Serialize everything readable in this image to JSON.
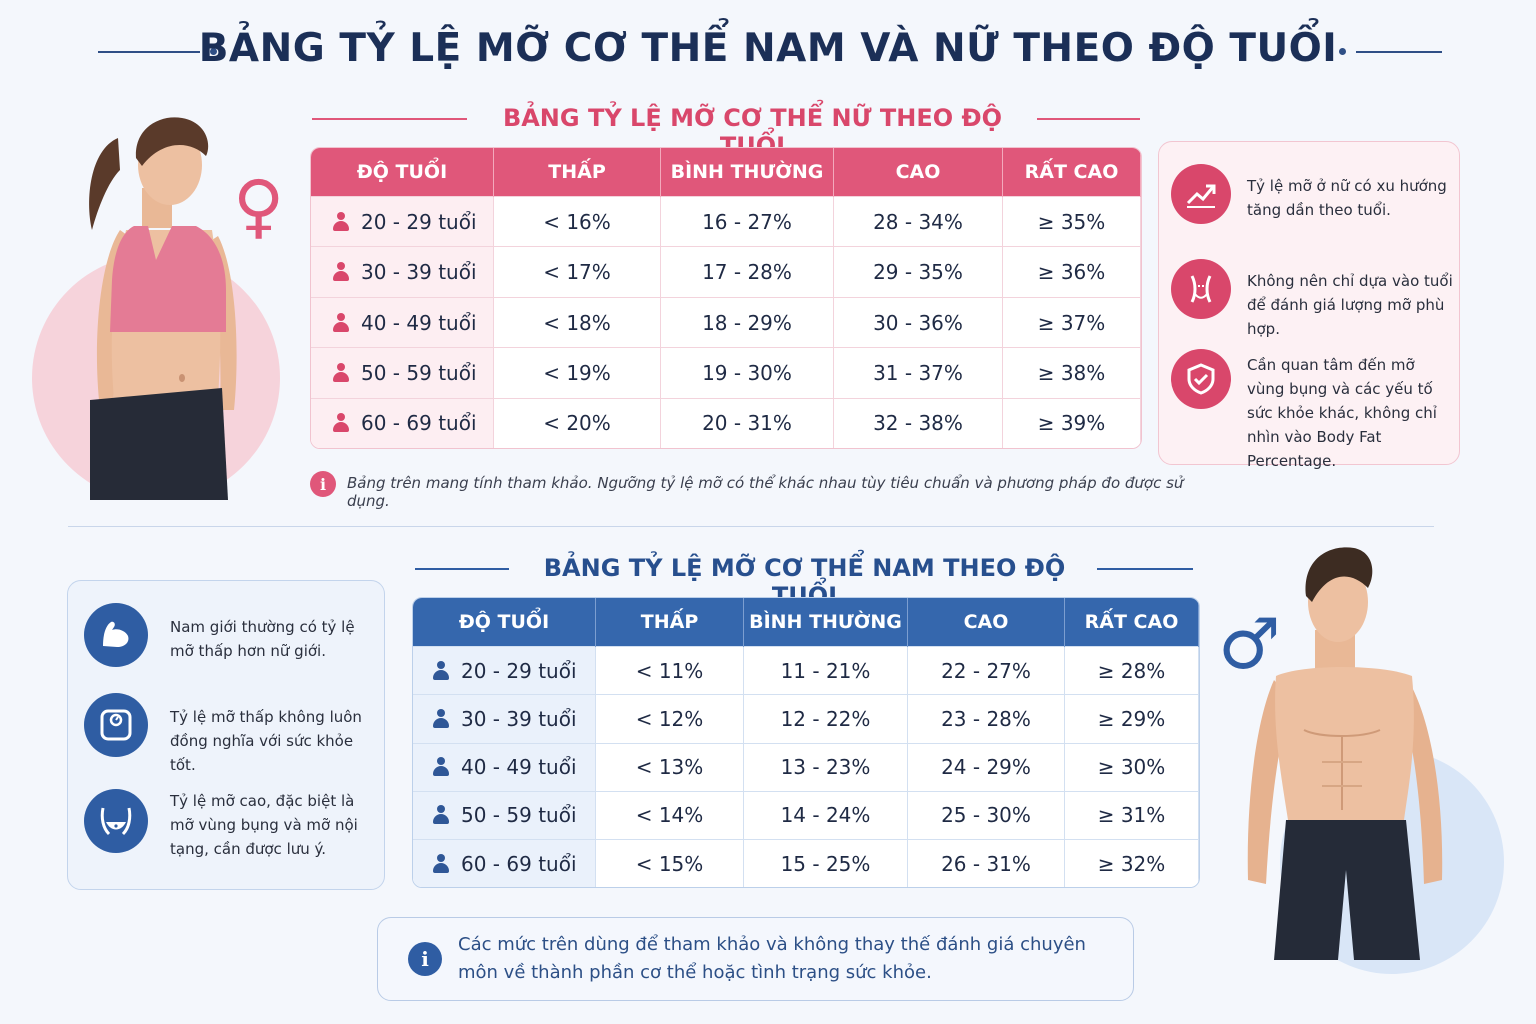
{
  "title": "BẢNG TỶ LỆ MỠ CƠ THỂ NAM VÀ NỮ THEO ĐỘ TUỔI",
  "colors": {
    "female_accent": "#e0577a",
    "male_accent": "#3567ad",
    "title": "#1b2f57"
  },
  "female": {
    "heading": "BẢNG TỶ LỆ MỠ CƠ THỂ NỮ THEO ĐỘ TUỔI",
    "symbol": "♀",
    "columns": [
      "ĐỘ TUỔI",
      "THẤP",
      "BÌNH THƯỜNG",
      "CAO",
      "RẤT CAO"
    ],
    "rows": [
      [
        "20 - 29 tuổi",
        "< 16%",
        "16 - 27%",
        "28 - 34%",
        "≥ 35%"
      ],
      [
        "30 - 39 tuổi",
        "< 17%",
        "17 - 28%",
        "29 - 35%",
        "≥ 36%"
      ],
      [
        "40 - 49 tuổi",
        "< 18%",
        "18 - 29%",
        "30 - 36%",
        "≥ 37%"
      ],
      [
        "50 - 59 tuổi",
        "< 19%",
        "19 - 30%",
        "31 - 37%",
        "≥ 38%"
      ],
      [
        "60 - 69 tuổi",
        "< 20%",
        "20 - 31%",
        "32 - 38%",
        "≥ 39%"
      ]
    ],
    "note": "Bảng trên mang tính tham khảo. Ngưỡng tỷ lệ mỡ có thể khác nhau tùy tiêu chuẩn và phương pháp đo được sử dụng.",
    "tips": [
      {
        "icon": "trend-up-icon",
        "text": "Tỷ lệ mỡ ở nữ có xu hướng tăng dần theo tuổi."
      },
      {
        "icon": "waist-icon",
        "text": "Không nên chỉ dựa vào tuổi để đánh giá lượng mỡ phù hợp."
      },
      {
        "icon": "shield-check-icon",
        "text": "Cần quan tâm đến mỡ vùng bụng và các yếu tố sức khỏe khác, không chỉ nhìn vào Body Fat Percentage."
      }
    ]
  },
  "male": {
    "heading": "BẢNG TỶ LỆ MỠ CƠ THỂ NAM THEO ĐỘ TUỔI",
    "symbol": "♂",
    "columns": [
      "ĐỘ TUỔI",
      "THẤP",
      "BÌNH THƯỜNG",
      "CAO",
      "RẤT CAO"
    ],
    "rows": [
      [
        "20 - 29 tuổi",
        "< 11%",
        "11 - 21%",
        "22 - 27%",
        "≥ 28%"
      ],
      [
        "30 - 39 tuổi",
        "< 12%",
        "12 - 22%",
        "23 - 28%",
        "≥ 29%"
      ],
      [
        "40 - 49 tuổi",
        "< 13%",
        "13 - 23%",
        "24 - 29%",
        "≥ 30%"
      ],
      [
        "50 - 59 tuổi",
        "< 14%",
        "14 - 24%",
        "25 - 30%",
        "≥ 31%"
      ],
      [
        "60 - 69 tuổi",
        "< 15%",
        "15 - 25%",
        "26 - 31%",
        "≥ 32%"
      ]
    ],
    "note": "Các mức trên dùng để tham khảo và không thay thế đánh giá chuyên môn về thành phần cơ thể hoặc tình trạng sức khỏe.",
    "tips": [
      {
        "icon": "muscle-arm-icon",
        "text": "Nam giới thường có tỷ lệ mỡ thấp hơn nữ giới."
      },
      {
        "icon": "scale-icon",
        "text": "Tỷ lệ mỡ thấp không luôn đồng nghĩa với sức khỏe tốt."
      },
      {
        "icon": "belly-icon",
        "text": "Tỷ lệ mỡ cao, đặc biệt là mỡ vùng bụng và mỡ nội tạng, cần được lưu ý."
      }
    ]
  }
}
